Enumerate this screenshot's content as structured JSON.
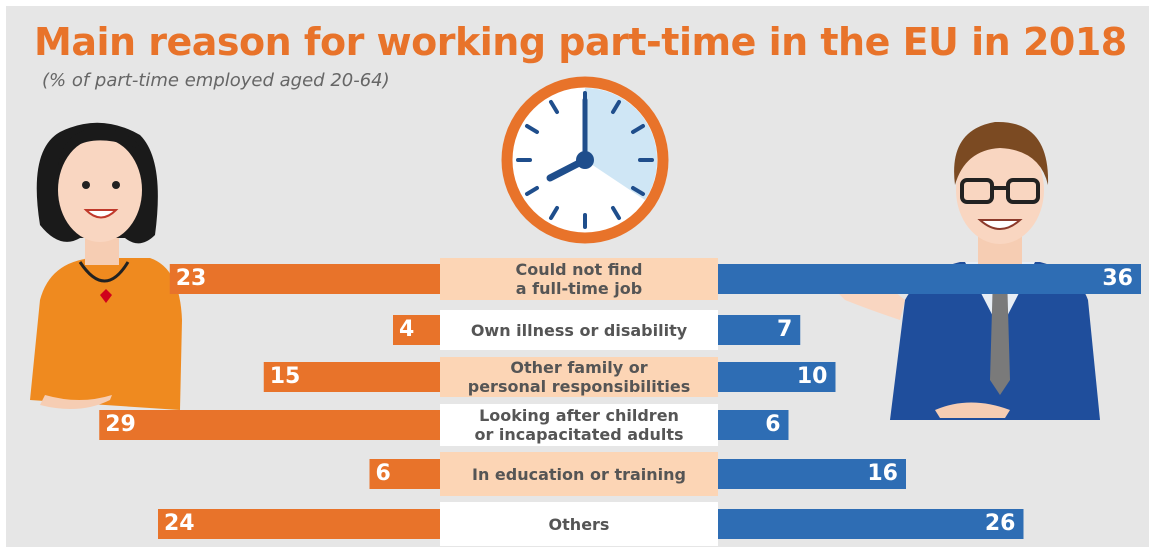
{
  "chart_data": {
    "type": "butterfly",
    "title": "Main reason for working part-time in the EU in 2018",
    "subtitle": "(% of part-time employed aged 20-64)",
    "categories": [
      "Could not find\na full-time job",
      "Own illness or disability",
      "Other family or\npersonal responsibilities",
      "Looking after children\nor incapacitated adults",
      "In education or training",
      "Others"
    ],
    "series": [
      {
        "color": "#e8732a",
        "values": [
          23,
          4,
          15,
          29,
          6,
          24
        ]
      },
      {
        "color": "#2e6db4",
        "values": [
          36,
          7,
          10,
          6,
          16,
          26
        ]
      }
    ]
  }
}
